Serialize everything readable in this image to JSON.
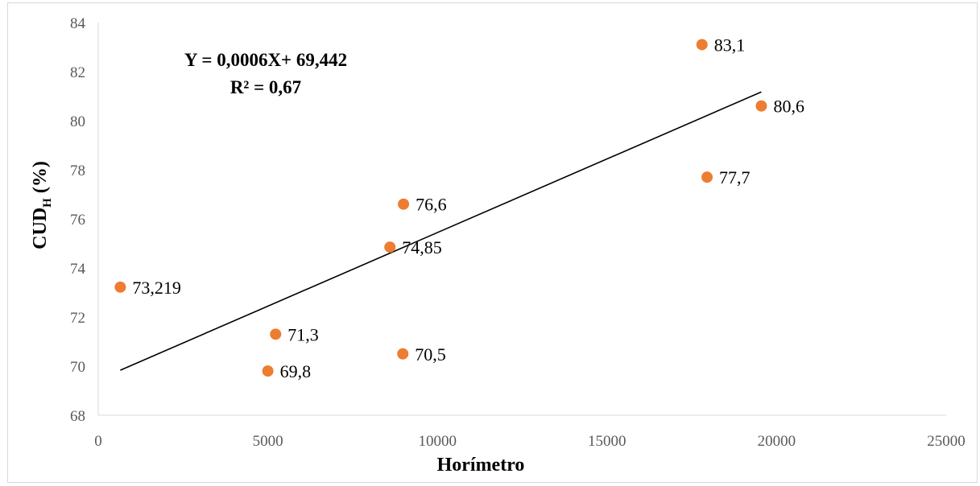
{
  "chart_data": {
    "type": "scatter",
    "title": "",
    "xlabel": "Horímetro",
    "ylabel_main": "CUD",
    "ylabel_sub": "H",
    "ylabel_suffix": " (%)",
    "xlim": [
      0,
      25000
    ],
    "ylim": [
      68,
      84
    ],
    "xticks": [
      0,
      5000,
      10000,
      15000,
      20000,
      25000
    ],
    "yticks": [
      68,
      70,
      72,
      74,
      76,
      78,
      80,
      82,
      84
    ],
    "grid": false,
    "points": [
      {
        "x": 650,
        "y": 73.219,
        "label": "73,219"
      },
      {
        "x": 5000,
        "y": 69.8,
        "label": "69,8"
      },
      {
        "x": 5230,
        "y": 71.3,
        "label": "71,3"
      },
      {
        "x": 8600,
        "y": 74.85,
        "label": "74,85"
      },
      {
        "x": 9000,
        "y": 76.6,
        "label": "76,6"
      },
      {
        "x": 8980,
        "y": 70.5,
        "label": "70,5"
      },
      {
        "x": 17800,
        "y": 83.1,
        "label": "83,1"
      },
      {
        "x": 17950,
        "y": 77.7,
        "label": "77,7"
      },
      {
        "x": 19550,
        "y": 80.6,
        "label": "80,6"
      }
    ],
    "trendline": {
      "slope": 0.0006,
      "intercept": 69.442,
      "x_range": [
        650,
        19550
      ]
    },
    "annotation_equation": "Y = 0,0006X+ 69,442",
    "annotation_r2": "R² = 0,67",
    "colors": {
      "marker": "#ED7D31",
      "trendline": "#000000",
      "axis": "#d9d9d9",
      "tick_text": "#595959"
    }
  }
}
